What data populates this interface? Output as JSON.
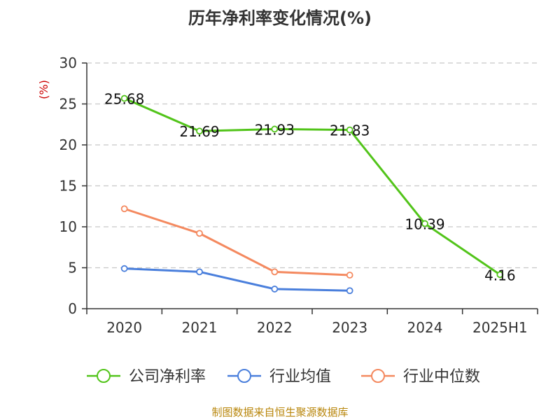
{
  "title": "历年净利率变化情况(%)",
  "footer": "制图数据来自恒生聚源数据库",
  "chart_data": {
    "type": "line",
    "categories": [
      "2020",
      "2021",
      "2022",
      "2023",
      "2024",
      "2025H1"
    ],
    "ylim": [
      0,
      30
    ],
    "yticks": [
      0,
      5,
      10,
      15,
      20,
      25,
      30
    ],
    "ylabel": "(%)",
    "grid": true,
    "legend_position": "bottom",
    "series": [
      {
        "name": "公司净利率",
        "color": "#52c41a",
        "values": [
          25.68,
          21.69,
          21.93,
          21.83,
          10.39,
          4.16
        ],
        "labels": [
          "25.68",
          "21.69",
          "21.93",
          "21.83",
          "10.39",
          "4.16"
        ]
      },
      {
        "name": "行业均值",
        "color": "#4a7fdc",
        "values": [
          4.9,
          4.5,
          2.4,
          2.2,
          null,
          null
        ]
      },
      {
        "name": "行业中位数",
        "color": "#f4895f",
        "values": [
          12.2,
          9.2,
          4.5,
          4.1,
          null,
          null
        ]
      }
    ]
  }
}
